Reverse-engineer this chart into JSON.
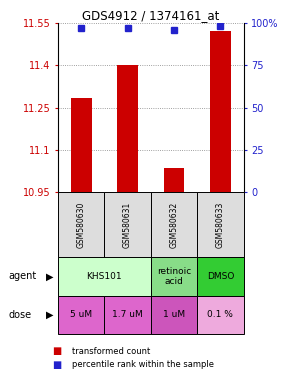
{
  "title": "GDS4912 / 1374161_at",
  "samples": [
    "GSM580630",
    "GSM580631",
    "GSM580632",
    "GSM580633"
  ],
  "bar_values": [
    11.285,
    11.4,
    11.035,
    11.52
  ],
  "percentile_values": [
    97,
    97,
    96,
    98
  ],
  "y_min": 10.95,
  "y_max": 11.55,
  "y_ticks": [
    10.95,
    11.1,
    11.25,
    11.4,
    11.55
  ],
  "y_ticks_labels": [
    "10.95",
    "11.1",
    "11.25",
    "11.4",
    "11.55"
  ],
  "right_y_ticks": [
    0,
    25,
    50,
    75,
    100
  ],
  "right_y_labels": [
    "0",
    "25",
    "50",
    "75",
    "100%"
  ],
  "bar_color": "#cc0000",
  "dot_color": "#2222cc",
  "bar_bottom": 10.95,
  "dose_labels": [
    "5 uM",
    "1.7 uM",
    "1 uM",
    "0.1 %"
  ],
  "legend_bar_color": "#cc0000",
  "legend_dot_color": "#2222cc",
  "agent_groups": [
    {
      "cols": [
        0,
        1
      ],
      "label": "KHS101",
      "color": "#ccffcc"
    },
    {
      "cols": [
        2
      ],
      "label": "retinoic\nacid",
      "color": "#88dd88"
    },
    {
      "cols": [
        3
      ],
      "label": "DMSO",
      "color": "#33cc33"
    }
  ],
  "dose_colors": [
    "#dd66cc",
    "#dd66cc",
    "#cc55bb",
    "#eeaadd"
  ]
}
